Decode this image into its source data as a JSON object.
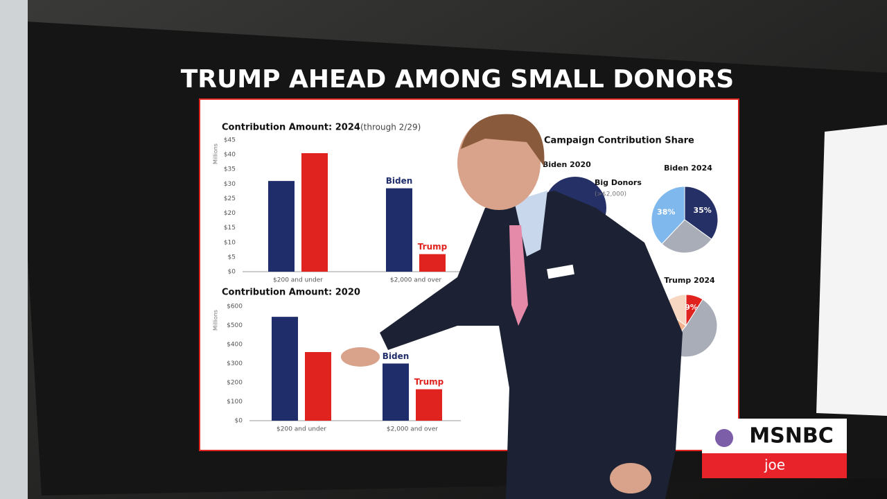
{
  "headline": "TRUMP AHEAD AMONG SMALL DONORS",
  "broadcast": {
    "network": "MSNBC",
    "show": "joe"
  },
  "chart_data": [
    {
      "type": "bar",
      "title": "Contribution Amount: 2024",
      "subtitle": "(through 2/29)",
      "y_label": "Millions",
      "categories": [
        "$200 and under",
        "$2,000 and over"
      ],
      "series": [
        {
          "name": "Biden",
          "color": "#1f2d6b",
          "values": [
            31,
            28.5
          ]
        },
        {
          "name": "Trump",
          "color": "#e0231f",
          "values": [
            40.5,
            6
          ]
        }
      ],
      "ylim": [
        0,
        45
      ],
      "yticks": [
        {
          "value": 0,
          "label": "$0"
        },
        {
          "value": 5,
          "label": "$5"
        },
        {
          "value": 10,
          "label": "$10"
        },
        {
          "value": 15,
          "label": "$15"
        },
        {
          "value": 20,
          "label": "$20"
        },
        {
          "value": 25,
          "label": "$25"
        },
        {
          "value": 30,
          "label": "$30"
        },
        {
          "value": 35,
          "label": "$35"
        },
        {
          "value": 40,
          "label": "$40"
        },
        {
          "value": 45,
          "label": "$45"
        }
      ]
    },
    {
      "type": "bar",
      "title": "Contribution Amount: 2020",
      "y_label": "Millions",
      "categories": [
        "$200 and under",
        "$2,000 and over"
      ],
      "series": [
        {
          "name": "Biden",
          "color": "#1f2d6b",
          "values": [
            545,
            300
          ]
        },
        {
          "name": "Trump",
          "color": "#e0231f",
          "values": [
            360,
            165
          ]
        }
      ],
      "ylim": [
        0,
        600
      ],
      "yticks": [
        {
          "value": 0,
          "label": "$0"
        },
        {
          "value": 100,
          "label": "$100"
        },
        {
          "value": 200,
          "label": "$200"
        },
        {
          "value": 300,
          "label": "$300"
        },
        {
          "value": 400,
          "label": "$400"
        },
        {
          "value": 500,
          "label": "$500"
        },
        {
          "value": 600,
          "label": "$600"
        }
      ]
    },
    {
      "type": "pie",
      "title": "Campaign Contribution Share",
      "annotations": [
        "Biden 2020",
        "Big Donors",
        "(>$2,000)"
      ],
      "pies": [
        {
          "name": "Biden 2024",
          "values": [
            35,
            27,
            38
          ],
          "value_labels": [
            "35%",
            null,
            "38%"
          ],
          "colors": [
            "#253066",
            "#a8adb8",
            "#7fb8ec"
          ]
        },
        {
          "name": "Trump 2024",
          "values": [
            9,
            52,
            24,
            15
          ],
          "value_labels": [
            "9%",
            null,
            null,
            null
          ],
          "colors": [
            "#e0231f",
            "#a8adb8",
            "#f2b38f",
            "#f7d7c2"
          ]
        }
      ]
    }
  ]
}
